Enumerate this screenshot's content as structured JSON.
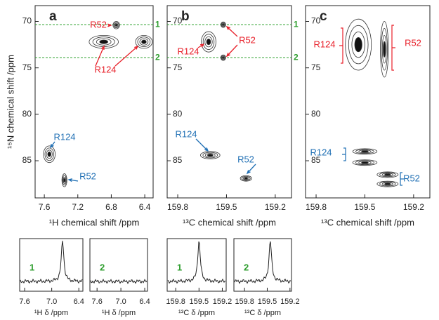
{
  "chart_data": [
    {
      "type": "contour",
      "title": "a",
      "xlabel": "¹H chemical shift /ppm",
      "ylabel": "¹⁵N chemical shift /ppm",
      "xlim": [
        7.71,
        6.3
      ],
      "xticks": [
        7.6,
        7.2,
        6.8,
        6.4
      ],
      "ylim": [
        89,
        68.3
      ],
      "yticks": [
        70,
        75,
        80,
        85
      ],
      "hlines": [
        {
          "value": 70.35,
          "label": "1"
        },
        {
          "value": 73.9,
          "label": "2"
        }
      ],
      "peaks": {
        "x": [
          6.74,
          6.89,
          6.41,
          7.54,
          7.36
        ],
        "y": [
          70.4,
          72.2,
          72.2,
          84.3,
          87.1
        ],
        "x_width": [
          0.08,
          0.35,
          0.2,
          0.14,
          0.06
        ],
        "y_width": [
          0.8,
          1.4,
          1.4,
          1.8,
          1.4
        ]
      },
      "annotations": [
        {
          "text": "R52",
          "color": "#e8202a"
        },
        {
          "text": "R124",
          "color": "#e8202a"
        },
        {
          "text": "R124",
          "color": "#1f6fb4"
        },
        {
          "text": "R52",
          "color": "#1f6fb4"
        }
      ]
    },
    {
      "type": "contour",
      "title": "b",
      "xlabel": "¹³C chemical shift /ppm",
      "xlim": [
        159.865,
        159.1
      ],
      "xticks": [
        159.8,
        159.5,
        159.2
      ],
      "ylim": [
        89,
        68.3
      ],
      "yticks": [
        70,
        75,
        80,
        85
      ],
      "hlines": [
        {
          "value": 70.35,
          "label": "1"
        },
        {
          "value": 73.9,
          "label": "2"
        }
      ],
      "peaks": {
        "x": [
          159.52,
          159.52,
          159.61,
          159.6,
          159.38
        ],
        "y": [
          70.35,
          73.9,
          72.2,
          84.4,
          86.9
        ],
        "x_width": [
          0.03,
          0.03,
          0.09,
          0.12,
          0.07
        ],
        "y_width": [
          0.6,
          0.6,
          2.2,
          0.8,
          0.6
        ]
      },
      "annotations": [
        {
          "text": "R124",
          "color": "#e8202a"
        },
        {
          "text": "R52",
          "color": "#e8202a"
        },
        {
          "text": "R124",
          "color": "#1f6fb4"
        },
        {
          "text": "R52",
          "color": "#1f6fb4"
        }
      ]
    },
    {
      "type": "contour",
      "title": "c",
      "xlabel": "¹³C chemical shift /ppm",
      "xlim": [
        159.865,
        159.1
      ],
      "xticks": [
        159.8,
        159.5,
        159.2
      ],
      "ylim": [
        89,
        68.3
      ],
      "yticks": [
        70,
        75,
        80,
        85
      ],
      "peaks": {
        "x": [
          159.54,
          159.38,
          159.5,
          159.5,
          159.36,
          159.36
        ],
        "y": [
          72.5,
          73,
          84,
          85.2,
          86.5,
          87.5
        ],
        "x_width": [
          0.16,
          0.05,
          0.15,
          0.15,
          0.13,
          0.13
        ],
        "y_width": [
          5.5,
          6,
          0.6,
          0.6,
          0.6,
          0.6
        ]
      },
      "annotations": [
        {
          "text": "R124",
          "color": "#e8202a"
        },
        {
          "text": "R52",
          "color": "#e8202a"
        },
        {
          "text": "R124",
          "color": "#1f6fb4"
        },
        {
          "text": "R52",
          "color": "#1f6fb4"
        }
      ]
    },
    {
      "type": "spectrum",
      "title": "1",
      "xlabel": "¹H δ /ppm",
      "xlim": [
        7.71,
        6.31
      ],
      "xticks": [
        7.6,
        {
          "value": 7,
          "label": "7.0"
        },
        6.4
      ],
      "peak": 6.76
    },
    {
      "type": "spectrum",
      "title": "2",
      "xlabel": "¹H δ /ppm",
      "xlim": [
        7.78,
        6.33
      ],
      "xticks": [
        7.6,
        {
          "value": 7,
          "label": "7.0"
        },
        6.4
      ],
      "peak": null
    },
    {
      "type": "spectrum",
      "title": "1",
      "xlabel": "¹³C δ /ppm",
      "xlim": [
        159.91,
        159.15
      ],
      "xticks": [
        159.8,
        159.5,
        159.2
      ],
      "peak": 159.5
    },
    {
      "type": "spectrum",
      "title": "2",
      "xlabel": "¹³C δ /ppm",
      "xlim": [
        159.94,
        159.18
      ],
      "xticks": [
        159.8,
        159.5,
        159.2
      ],
      "peak": 159.46
    }
  ]
}
